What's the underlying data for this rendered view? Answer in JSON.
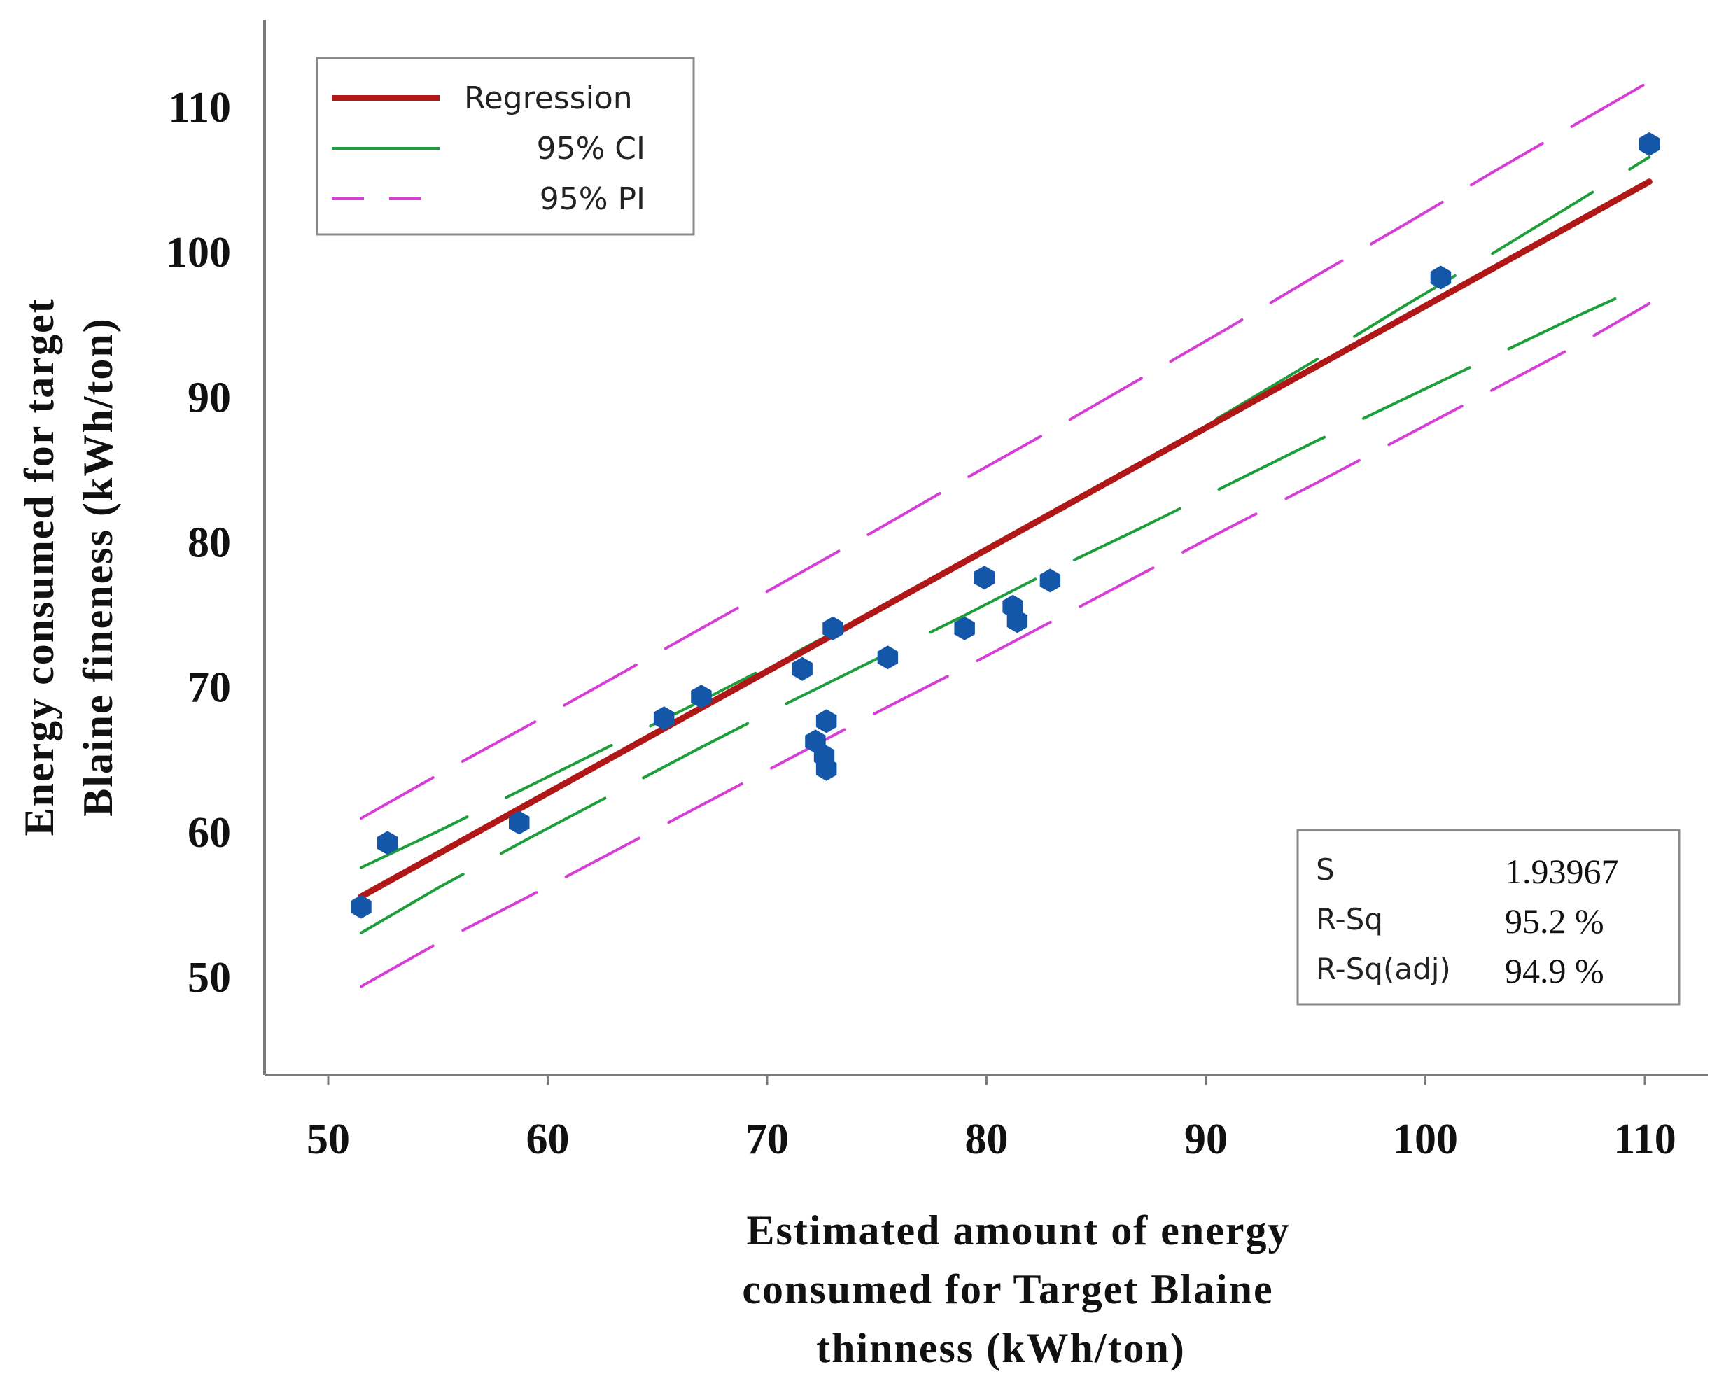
{
  "chart_data": {
    "type": "scatter",
    "xlabel_lines": [
      "Estimated  amount  of  energy",
      "consumed  for  Target  Blaine",
      "thinness (kWh/ton)"
    ],
    "ylabel_lines": [
      "Energy  consumed  for  target",
      "Blaine  fineness  (kWh/ton)"
    ],
    "xlim": [
      48,
      110.5
    ],
    "ylim": [
      44,
      116
    ],
    "x_ticks": [
      50,
      60,
      70,
      80,
      90,
      100,
      110
    ],
    "y_ticks": [
      50,
      60,
      70,
      80,
      90,
      100,
      110
    ],
    "points": [
      {
        "x": 51.5,
        "y": 54.8
      },
      {
        "x": 52.7,
        "y": 59.2
      },
      {
        "x": 58.7,
        "y": 60.6
      },
      {
        "x": 65.3,
        "y": 67.8
      },
      {
        "x": 67.0,
        "y": 69.3
      },
      {
        "x": 71.6,
        "y": 71.2
      },
      {
        "x": 72.2,
        "y": 66.2
      },
      {
        "x": 72.6,
        "y": 65.2
      },
      {
        "x": 72.7,
        "y": 64.3
      },
      {
        "x": 72.7,
        "y": 67.6
      },
      {
        "x": 73.0,
        "y": 74.0
      },
      {
        "x": 75.5,
        "y": 72.0
      },
      {
        "x": 79.0,
        "y": 74.0
      },
      {
        "x": 79.9,
        "y": 77.5
      },
      {
        "x": 81.2,
        "y": 75.5
      },
      {
        "x": 81.4,
        "y": 74.5
      },
      {
        "x": 82.9,
        "y": 77.3
      },
      {
        "x": 100.7,
        "y": 98.2
      },
      {
        "x": 110.2,
        "y": 107.4
      }
    ],
    "regression": {
      "x": [
        51.5,
        110.2
      ],
      "y": [
        55.5,
        104.8
      ]
    },
    "ci_upper": {
      "x": [
        51.5,
        55,
        59,
        63,
        67,
        71,
        75,
        79,
        83,
        87,
        91,
        95,
        99,
        103,
        107,
        110.2
      ],
      "y": [
        57.5,
        60.0,
        63.0,
        66.0,
        69.0,
        72.1,
        75.3,
        78.6,
        81.9,
        85.4,
        88.9,
        92.5,
        96.2,
        99.8,
        103.5,
        106.5
      ]
    },
    "ci_lower": {
      "x": [
        51.5,
        55,
        59,
        63,
        67,
        71,
        75,
        79,
        83,
        87,
        91,
        95,
        99,
        103,
        107,
        110.2
      ],
      "y": [
        53.0,
        56.1,
        59.4,
        62.6,
        65.8,
        68.9,
        71.9,
        74.9,
        78.0,
        80.9,
        83.9,
        86.9,
        89.8,
        92.7,
        95.6,
        97.8
      ]
    },
    "pi_upper": {
      "x": [
        51.5,
        55,
        59,
        63,
        67,
        71,
        75,
        79,
        83,
        87,
        91,
        95,
        99,
        103,
        107,
        110.2
      ],
      "y": [
        60.9,
        63.9,
        67.2,
        70.6,
        74.0,
        77.4,
        80.8,
        84.3,
        87.7,
        91.2,
        94.7,
        98.3,
        101.8,
        105.4,
        108.9,
        111.7
      ]
    },
    "pi_lower": {
      "x": [
        51.5,
        55,
        59,
        63,
        67,
        71,
        75,
        79,
        83,
        87,
        91,
        95,
        99,
        103,
        107,
        110.2
      ],
      "y": [
        49.3,
        52.3,
        55.4,
        58.6,
        61.8,
        65.0,
        68.2,
        71.3,
        74.5,
        77.7,
        80.9,
        84.0,
        87.2,
        90.4,
        93.6,
        96.4
      ]
    },
    "legend": [
      {
        "label": "Regression",
        "style": "solid",
        "color": "#b01818"
      },
      {
        "label": "95% CI",
        "style": "solid",
        "color": "#1e9e3a"
      },
      {
        "label": "95% PI",
        "style": "dashed",
        "color": "#d63fd6"
      }
    ],
    "stats": [
      {
        "label": "S",
        "value": "1.93967"
      },
      {
        "label": "R-Sq",
        "value": "95.2 %"
      },
      {
        "label": "R-Sq(adj)",
        "value": "94.9 %"
      }
    ],
    "point_color": "#1457a8",
    "grid": false,
    "legend_position": "top-left",
    "stats_position": "bottom-right"
  }
}
